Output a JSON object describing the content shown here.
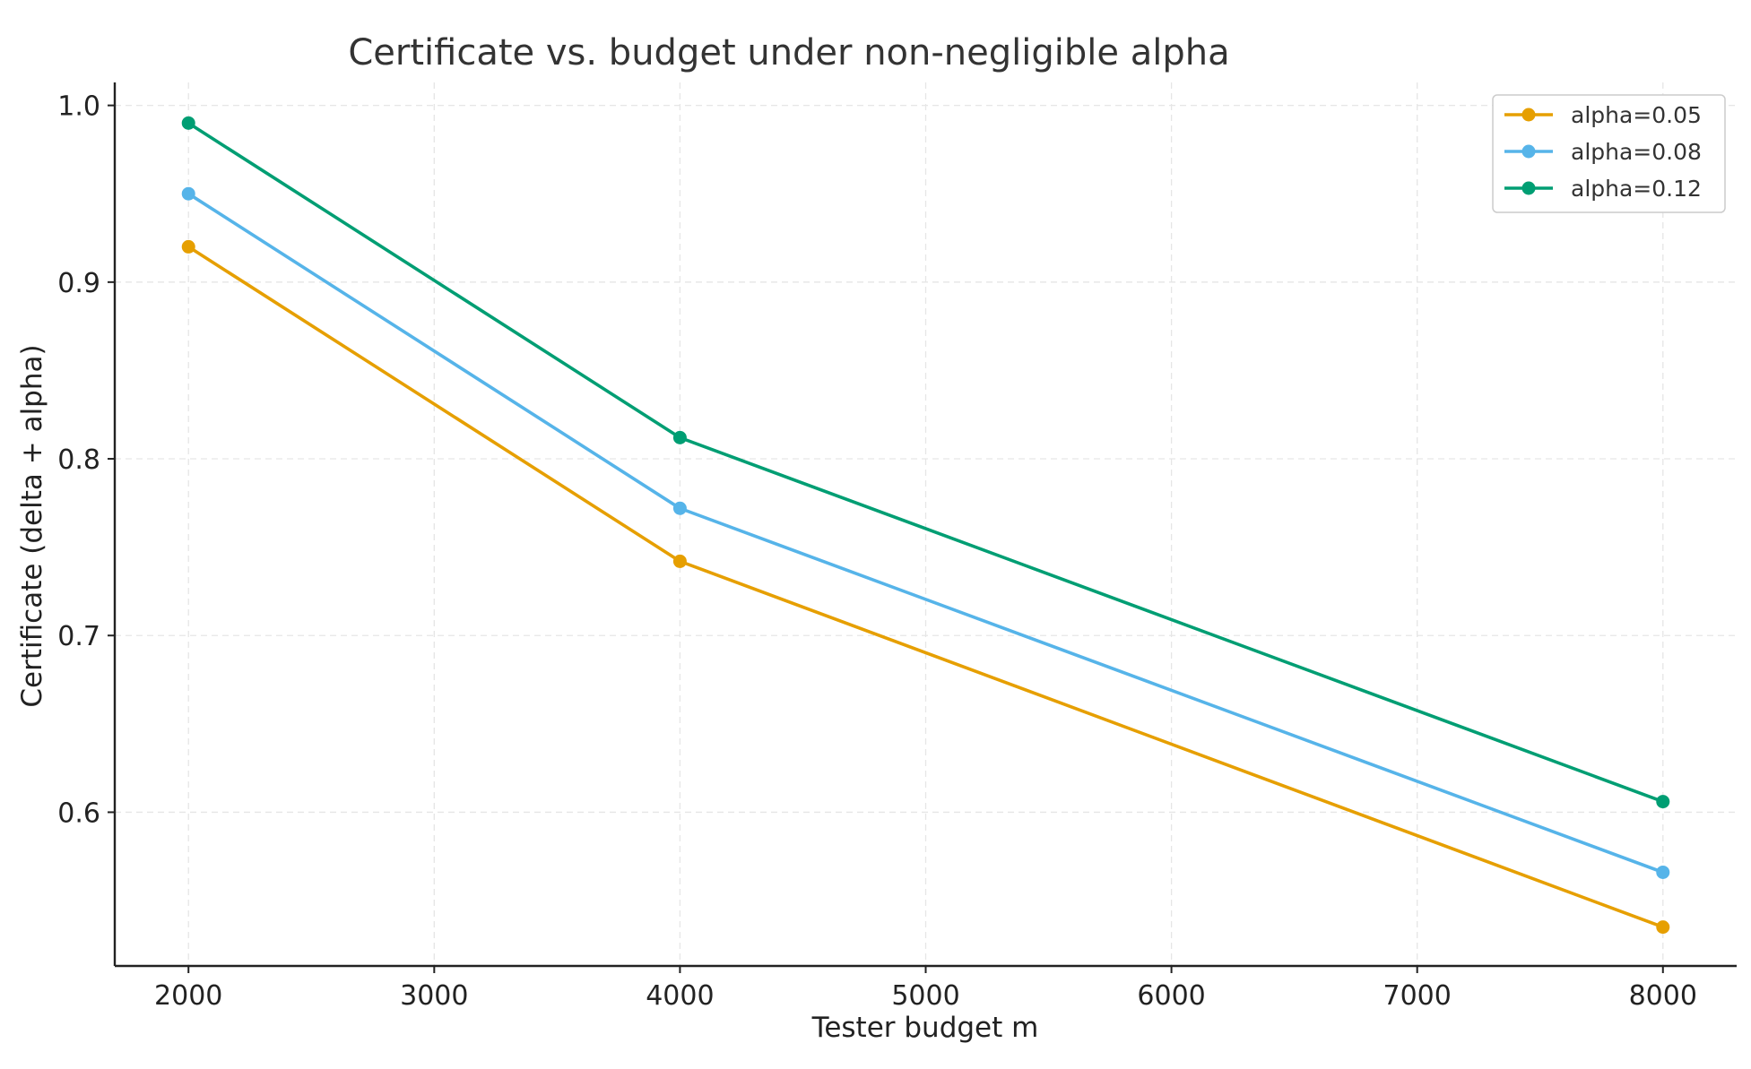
{
  "chart_data": {
    "type": "line",
    "title": "Certificate vs. budget under non-negligible alpha",
    "xlabel": "Tester budget m",
    "ylabel": "Certificate (delta + alpha)",
    "x": [
      2000,
      4000,
      8000
    ],
    "xlim": [
      1700,
      8300
    ],
    "ylim": [
      0.513,
      1.013
    ],
    "xticks": [
      2000,
      3000,
      4000,
      5000,
      6000,
      7000,
      8000
    ],
    "yticks": [
      0.6,
      0.7,
      0.8,
      0.9,
      1.0
    ],
    "ytick_labels": [
      "0.6",
      "0.7",
      "0.8",
      "0.9",
      "1.0"
    ],
    "grid": true,
    "legend_position": "top-right",
    "series": [
      {
        "name": "alpha=0.05",
        "color": "#E69F00",
        "values": [
          0.92,
          0.742,
          0.535
        ]
      },
      {
        "name": "alpha=0.08",
        "color": "#56B4E9",
        "values": [
          0.95,
          0.772,
          0.566
        ]
      },
      {
        "name": "alpha=0.12",
        "color": "#009E73",
        "values": [
          0.99,
          0.812,
          0.606
        ]
      }
    ]
  }
}
